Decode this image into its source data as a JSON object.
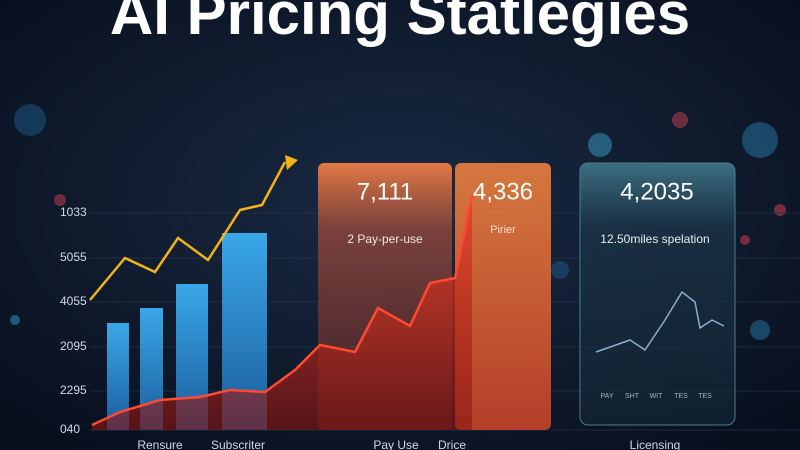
{
  "header": {
    "title": "AI Pricing Statlegies"
  },
  "y_axis_labels": [
    "1033",
    "5055",
    "4055",
    "2095",
    "2295",
    "040"
  ],
  "x_axis_labels": [
    "Rensure",
    "Subscriter",
    "Pay Use",
    "Drice",
    "Licensing"
  ],
  "cards": [
    {
      "value": "7,111",
      "label": "2 Pay-per-use"
    },
    {
      "value": "4,336",
      "label": "Pirier"
    },
    {
      "value": "4,2035",
      "label": "12.50miles spelation"
    }
  ],
  "mini_chart_labels": [
    "PAY",
    "SHT",
    "WIT",
    "TES",
    "TES"
  ]
}
